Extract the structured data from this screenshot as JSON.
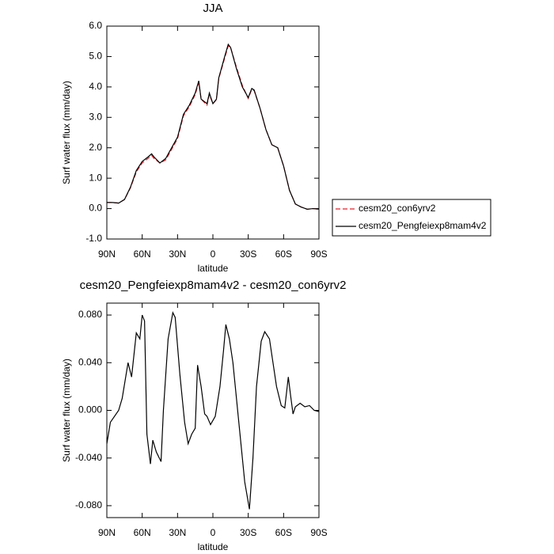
{
  "chart_data": [
    {
      "type": "line",
      "title": "JJA",
      "ylabel": "Surf water flux (mm/day)",
      "xlabel": "latitude",
      "x": [
        90,
        85,
        80,
        75,
        70,
        65,
        60,
        55,
        52,
        50,
        45,
        40,
        35,
        30,
        25,
        20,
        15,
        12,
        10,
        5,
        3,
        0,
        -3,
        -5,
        -10,
        -13,
        -15,
        -20,
        -25,
        -30,
        -33,
        -35,
        -40,
        -45,
        -50,
        -55,
        -60,
        -65,
        -70,
        -75,
        -80,
        -85,
        -90
      ],
      "series": [
        {
          "name": "cesm20_con6yrv2",
          "color": "#e8202a",
          "dashed": true,
          "values": [
            0.2,
            0.2,
            0.18,
            0.3,
            0.68,
            1.2,
            1.5,
            1.65,
            1.75,
            1.65,
            1.5,
            1.6,
            1.95,
            2.3,
            3.05,
            3.35,
            3.75,
            4.15,
            3.6,
            3.4,
            3.75,
            3.45,
            3.58,
            4.28,
            4.95,
            5.35,
            5.3,
            4.65,
            4.05,
            3.62,
            3.92,
            3.88,
            3.3,
            2.6,
            2.1,
            2.0,
            1.4,
            0.6,
            0.15,
            0.05,
            -0.02,
            0.0,
            -0.02
          ]
        },
        {
          "name": "cesm20_Pengfeiexp8mam4v2",
          "color": "#000000",
          "dashed": false,
          "values": [
            0.2,
            0.2,
            0.18,
            0.3,
            0.7,
            1.25,
            1.55,
            1.7,
            1.8,
            1.7,
            1.5,
            1.65,
            2.0,
            2.35,
            3.1,
            3.4,
            3.8,
            4.2,
            3.6,
            3.45,
            3.8,
            3.45,
            3.6,
            4.3,
            5.0,
            5.4,
            5.3,
            4.6,
            4.0,
            3.65,
            3.95,
            3.9,
            3.3,
            2.6,
            2.1,
            2.0,
            1.4,
            0.6,
            0.15,
            0.05,
            -0.02,
            0.0,
            -0.02
          ]
        }
      ],
      "xlim": [
        90,
        -90
      ],
      "xticks": [
        {
          "value": 90,
          "label": "90N"
        },
        {
          "value": 60,
          "label": "60N"
        },
        {
          "value": 30,
          "label": "30N"
        },
        0,
        {
          "value": -30,
          "label": "30S"
        },
        {
          "value": -60,
          "label": "60S"
        },
        {
          "value": -90,
          "label": "90S"
        }
      ],
      "ylim": [
        -1,
        6
      ],
      "yticks": [
        {
          "value": -1,
          "label": "-1.0"
        },
        {
          "value": 0,
          "label": "0.0"
        },
        {
          "value": 1,
          "label": "1.0"
        },
        {
          "value": 2,
          "label": "2.0"
        },
        {
          "value": 3,
          "label": "3.0"
        },
        {
          "value": 4,
          "label": "4.0"
        },
        {
          "value": 5,
          "label": "5.0"
        },
        {
          "value": 6,
          "label": "6.0"
        }
      ]
    },
    {
      "type": "line",
      "title": "cesm20_Pengfeiexp8mam4v2 - cesm20_con6yrv2",
      "ylabel": "Surf water flux (mm/day)",
      "xlabel": "latitude",
      "x": [
        90,
        87,
        80,
        77,
        72,
        69,
        65,
        62,
        60,
        58,
        56,
        53,
        51,
        48,
        44,
        42,
        38,
        34,
        32,
        28,
        24,
        21,
        18,
        15,
        13,
        10,
        7,
        5,
        2,
        -2,
        -6,
        -9,
        -11,
        -14,
        -17,
        -19,
        -23,
        -27,
        -31,
        -34,
        -37,
        -41,
        -44,
        -48,
        -51,
        -54,
        -58,
        -61,
        -64,
        -66,
        -68,
        -70,
        -74,
        -78,
        -82,
        -86,
        -90
      ],
      "series": [
        {
          "color": "#000000",
          "dashed": false,
          "values": [
            -0.028,
            -0.01,
            0.0,
            0.01,
            0.04,
            0.028,
            0.065,
            0.06,
            0.08,
            0.075,
            -0.02,
            -0.045,
            -0.025,
            -0.035,
            -0.043,
            0.0,
            0.06,
            0.082,
            0.078,
            0.03,
            -0.01,
            -0.028,
            -0.02,
            -0.015,
            0.038,
            0.02,
            -0.003,
            -0.005,
            -0.012,
            -0.005,
            0.02,
            0.05,
            0.072,
            0.06,
            0.04,
            0.02,
            -0.02,
            -0.06,
            -0.083,
            -0.04,
            0.02,
            0.058,
            0.066,
            0.06,
            0.04,
            0.02,
            0.004,
            0.002,
            0.028,
            0.012,
            -0.003,
            0.003,
            0.006,
            0.003,
            0.004,
            0.0,
            -0.001
          ]
        }
      ],
      "xlim": [
        90,
        -90
      ],
      "xticks": [
        {
          "value": 90,
          "label": "90N"
        },
        {
          "value": 60,
          "label": "60N"
        },
        {
          "value": 30,
          "label": "30N"
        },
        0,
        {
          "value": -30,
          "label": "30S"
        },
        {
          "value": -60,
          "label": "60S"
        },
        {
          "value": -90,
          "label": "90S"
        }
      ],
      "ylim": [
        -0.09,
        0.09
      ],
      "yticks": [
        {
          "value": -0.08,
          "label": "-0.080"
        },
        {
          "value": -0.04,
          "label": "-0.040"
        },
        {
          "value": 0,
          "label": "0.000"
        },
        {
          "value": 0.04,
          "label": "0.040"
        },
        {
          "value": 0.08,
          "label": "0.080"
        }
      ]
    }
  ]
}
